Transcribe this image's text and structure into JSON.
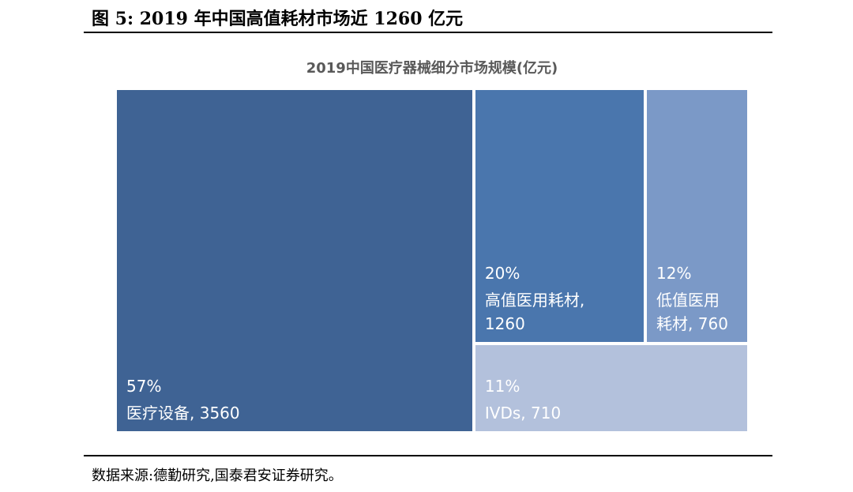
{
  "figure_title": "图 5:  2019 年中国高值耗材市场近 1260 亿元",
  "source_note": "数据来源:德勤研究,国泰君安证券研究。",
  "chart_data": {
    "type": "treemap",
    "title": "2019中国医疗器械细分市场规模(亿元)",
    "unit": "亿元",
    "items": [
      {
        "name": "医疗设备",
        "value": 3560,
        "percent_label": "57%",
        "label_lines": [
          "医疗设备, 3560"
        ],
        "color": "#3f6394"
      },
      {
        "name": "高值医用耗材",
        "value": 1260,
        "percent_label": "20%",
        "label_lines": [
          "高值医用耗材,",
          "1260"
        ],
        "color": "#4a76ad"
      },
      {
        "name": "低值医用耗材",
        "value": 760,
        "percent_label": "12%",
        "label_lines": [
          "低值医用",
          "耗材, 760"
        ],
        "color": "#7b99c7"
      },
      {
        "name": "IVDs",
        "value": 710,
        "percent_label": "11%",
        "label_lines": [
          "IVDs, 710"
        ],
        "color": "#b3c1dc"
      }
    ]
  }
}
